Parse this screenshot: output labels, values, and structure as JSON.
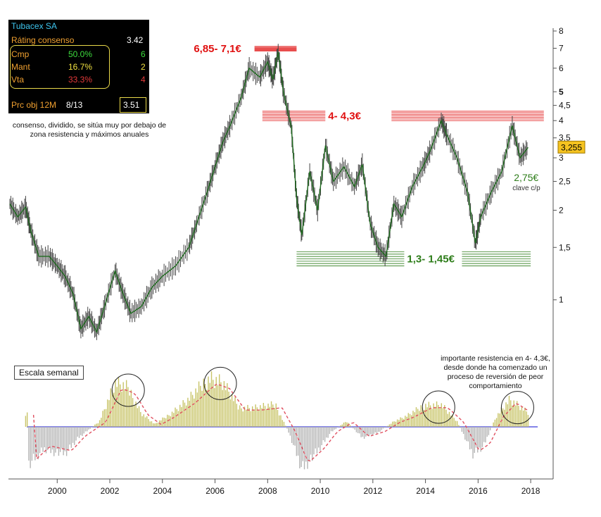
{
  "panel": {
    "title": "Tubacex SA",
    "rating_label": "Ráting consenso",
    "rating_value": "3.42",
    "rows": [
      {
        "label": "Cmp",
        "pct": "50.0%",
        "count": "6",
        "color": "#3ddc3d"
      },
      {
        "label": "Mant",
        "pct": "16.7%",
        "count": "2",
        "color": "#f0e040"
      },
      {
        "label": "Vta",
        "pct": "33.3%",
        "count": "4",
        "color": "#e43a3a"
      }
    ],
    "target_label": "Prc obj 12M",
    "target_date": "8/13",
    "target_value": "3.51"
  },
  "notes": {
    "consensus": "consenso, dividido, se sitúa muy por debajo de zona resistencia y máximos anuales",
    "resistance": "importante resistencia en 4- 4,3€, desde donde ha comenzado un proceso de reversión de peor comportamiento",
    "scale": "Escala semanal"
  },
  "chart_data": [
    {
      "type": "line",
      "scale": "log",
      "ylim": [
        0.72,
        8
      ],
      "xlim": [
        1998.2,
        2018.8
      ],
      "y_ticks": [
        "8",
        "7",
        "6",
        "5",
        "4,5",
        "4",
        "3,5",
        "3",
        "2,5",
        "2",
        "1,5",
        "1"
      ],
      "y_tick_values": [
        8,
        7,
        6,
        5,
        4.5,
        4,
        3.5,
        3,
        2.5,
        2,
        1.5,
        1
      ],
      "x_ticks": [
        "2000",
        "2002",
        "2004",
        "2006",
        "2008",
        "2010",
        "2012",
        "2014",
        "2016",
        "2018"
      ],
      "x_tick_values": [
        2000,
        2002,
        2004,
        2006,
        2008,
        2010,
        2012,
        2014,
        2016,
        2018
      ],
      "last_price": "3,255",
      "series": [
        {
          "points": [
            [
              1998.2,
              2.1
            ],
            [
              1998.5,
              1.9
            ],
            [
              1998.8,
              2.05
            ],
            [
              1999.0,
              1.7
            ],
            [
              1999.3,
              1.4
            ],
            [
              1999.7,
              1.4
            ],
            [
              2000.0,
              1.3
            ],
            [
              2000.3,
              1.2
            ],
            [
              2000.6,
              1.05
            ],
            [
              2000.9,
              0.8
            ],
            [
              2001.2,
              0.88
            ],
            [
              2001.5,
              0.78
            ],
            [
              2001.8,
              0.95
            ],
            [
              2002.2,
              1.25
            ],
            [
              2002.5,
              1.05
            ],
            [
              2002.8,
              0.9
            ],
            [
              2003.2,
              0.95
            ],
            [
              2003.6,
              1.1
            ],
            [
              2004.0,
              1.2
            ],
            [
              2004.5,
              1.3
            ],
            [
              2005.0,
              1.5
            ],
            [
              2005.3,
              1.8
            ],
            [
              2005.7,
              2.3
            ],
            [
              2006.0,
              2.8
            ],
            [
              2006.3,
              3.4
            ],
            [
              2006.6,
              3.9
            ],
            [
              2007.0,
              4.8
            ],
            [
              2007.3,
              6.0
            ],
            [
              2007.7,
              5.6
            ],
            [
              2008.0,
              6.3
            ],
            [
              2008.2,
              5.5
            ],
            [
              2008.4,
              6.8
            ],
            [
              2008.6,
              5.0
            ],
            [
              2008.9,
              3.8
            ],
            [
              2009.1,
              2.2
            ],
            [
              2009.3,
              1.65
            ],
            [
              2009.6,
              2.7
            ],
            [
              2009.9,
              2.0
            ],
            [
              2010.2,
              3.3
            ],
            [
              2010.5,
              2.5
            ],
            [
              2010.9,
              2.8
            ],
            [
              2011.3,
              2.4
            ],
            [
              2011.6,
              2.85
            ],
            [
              2011.9,
              1.8
            ],
            [
              2012.2,
              1.5
            ],
            [
              2012.5,
              1.4
            ],
            [
              2012.8,
              2.1
            ],
            [
              2013.1,
              1.9
            ],
            [
              2013.5,
              2.4
            ],
            [
              2013.9,
              2.8
            ],
            [
              2014.2,
              3.2
            ],
            [
              2014.6,
              4.0
            ],
            [
              2014.8,
              3.6
            ],
            [
              2015.2,
              3.0
            ],
            [
              2015.6,
              2.3
            ],
            [
              2015.9,
              1.55
            ],
            [
              2016.1,
              1.9
            ],
            [
              2016.5,
              2.3
            ],
            [
              2016.9,
              2.7
            ],
            [
              2017.3,
              3.85
            ],
            [
              2017.6,
              3.0
            ],
            [
              2017.9,
              3.25
            ]
          ]
        }
      ],
      "annotations": [
        {
          "text": "6,85- 7,1€",
          "color": "#e01010",
          "x": 2007.4,
          "low": 6.85,
          "high": 7.1,
          "x0": 2007.5,
          "x1": 2009.1
        },
        {
          "text": "4- 4,3€",
          "color": "#e01010",
          "x": 2010.3,
          "low": 4.0,
          "high": 4.3,
          "x0": 2007.8,
          "x1": 2018.5
        },
        {
          "text": "1,3- 1,45€",
          "color": "#2e7d1a",
          "x": 2013.3,
          "low": 1.3,
          "high": 1.45,
          "x0": 2009.1,
          "x1": 2018.0
        },
        {
          "text": "2,75€",
          "color": "#2e7d1a",
          "value": 2.75,
          "x0": 2017.2,
          "x1": 2018.5
        },
        {
          "text": "clave c/p",
          "color": "#333333"
        }
      ]
    },
    {
      "type": "bar",
      "x_range": [
        1998.8,
        2017.9
      ],
      "bar_colors": {
        "positive": "#c8c468",
        "negative": "#b4b4b4"
      },
      "baseline_color": "#3a3adb",
      "ma_color": "#e05060",
      "peaks": [
        {
          "x": 1998.9,
          "v": -0.7
        },
        {
          "x": 1999.5,
          "v": -0.4
        },
        {
          "x": 2000.3,
          "v": -0.5
        },
        {
          "x": 2000.8,
          "v": -0.2
        },
        {
          "x": 2001.6,
          "v": 0.1
        },
        {
          "x": 2002.2,
          "v": 0.8
        },
        {
          "x": 2002.7,
          "v": 0.7
        },
        {
          "x": 2003.2,
          "v": 0.25
        },
        {
          "x": 2003.7,
          "v": 0.05
        },
        {
          "x": 2004.2,
          "v": 0.2
        },
        {
          "x": 2005.0,
          "v": 0.5
        },
        {
          "x": 2005.8,
          "v": 0.9
        },
        {
          "x": 2006.3,
          "v": 0.8
        },
        {
          "x": 2006.9,
          "v": 0.35
        },
        {
          "x": 2007.5,
          "v": 0.35
        },
        {
          "x": 2008.3,
          "v": 0.4
        },
        {
          "x": 2008.8,
          "v": -0.1
        },
        {
          "x": 2009.3,
          "v": -0.75
        },
        {
          "x": 2009.9,
          "v": -0.45
        },
        {
          "x": 2010.4,
          "v": -0.1
        },
        {
          "x": 2011.0,
          "v": 0.1
        },
        {
          "x": 2011.6,
          "v": -0.2
        },
        {
          "x": 2012.2,
          "v": -0.1
        },
        {
          "x": 2012.8,
          "v": 0.1
        },
        {
          "x": 2013.3,
          "v": 0.2
        },
        {
          "x": 2014.0,
          "v": 0.4
        },
        {
          "x": 2014.6,
          "v": 0.4
        },
        {
          "x": 2015.2,
          "v": 0.1
        },
        {
          "x": 2015.8,
          "v": -0.5
        },
        {
          "x": 2016.2,
          "v": -0.35
        },
        {
          "x": 2016.7,
          "v": 0.2
        },
        {
          "x": 2017.2,
          "v": 0.5
        },
        {
          "x": 2017.9,
          "v": 0.25
        }
      ],
      "highlight_circles": [
        2002.7,
        2006.2,
        2014.5,
        2017.5
      ]
    }
  ]
}
